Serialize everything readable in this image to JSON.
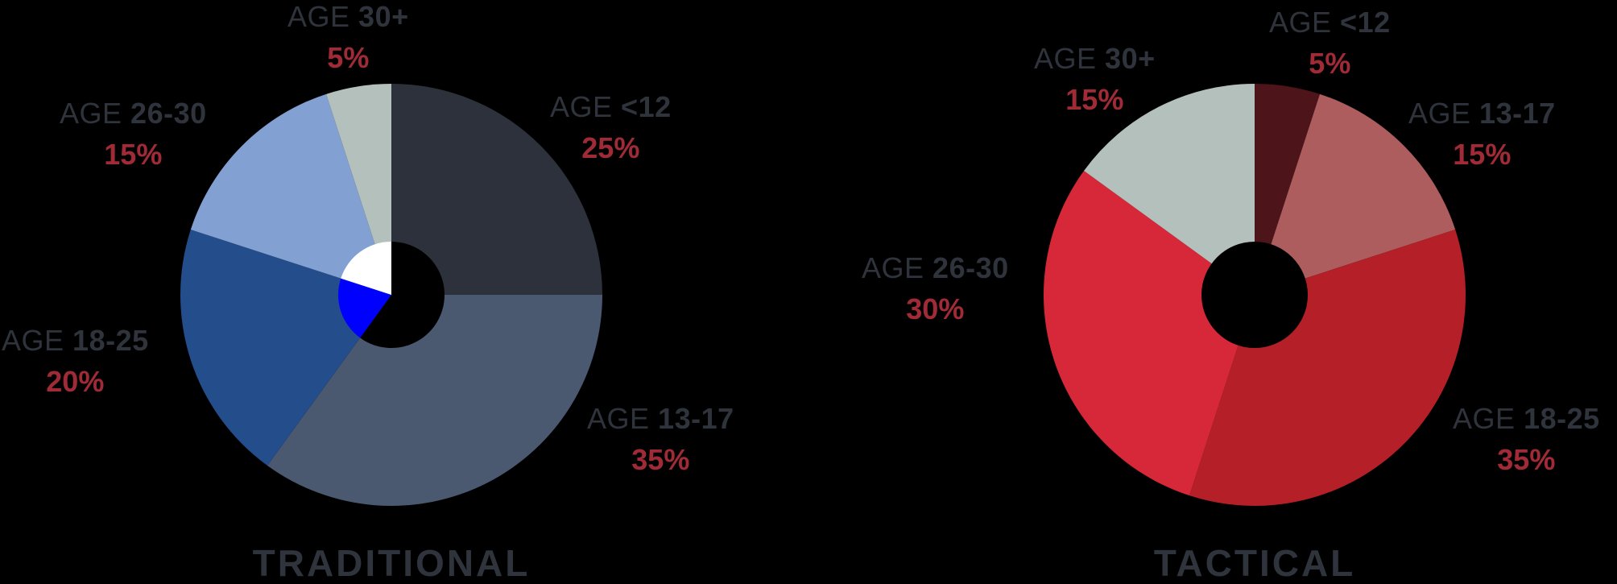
{
  "chart_data": [
    {
      "type": "pie",
      "title": "TRADITIONAL",
      "donut": true,
      "categories": [
        "AGE <12",
        "AGE 13-17",
        "AGE 18-25",
        "AGE 26-30",
        "AGE 30+"
      ],
      "values": [
        25,
        35,
        20,
        15,
        5
      ],
      "colors": [
        "#2c313b",
        "#4a5870",
        "#234d8b",
        "#82a0d2",
        "#b4c0bc"
      ],
      "start_angle": "12 o'clock",
      "direction": "clockwise",
      "inner_mini_pie": {
        "colors": [
          "#000000",
          "#0000ff",
          "#ffffff"
        ],
        "approx_values": [
          60,
          20,
          20
        ]
      }
    },
    {
      "type": "pie",
      "title": "TACTICAL",
      "donut": true,
      "categories": [
        "AGE <12",
        "AGE 13-17",
        "AGE 18-25",
        "AGE 26-30",
        "AGE 30+"
      ],
      "values": [
        5,
        15,
        35,
        30,
        15
      ],
      "colors": [
        "#4d1419",
        "#ad5d5e",
        "#b41f28",
        "#d62838",
        "#b4c0bc"
      ],
      "start_angle": "12 o'clock",
      "direction": "clockwise"
    }
  ],
  "traditional": {
    "title": "TRADITIONAL",
    "labels": [
      {
        "age": "AGE",
        "range": "<12",
        "pct": "25%"
      },
      {
        "age": "AGE",
        "range": "13-17",
        "pct": "35%"
      },
      {
        "age": "AGE",
        "range": "18-25",
        "pct": "20%"
      },
      {
        "age": "AGE",
        "range": "26-30",
        "pct": "15%"
      },
      {
        "age": "AGE",
        "range": "30+",
        "pct": "5%"
      }
    ]
  },
  "tactical": {
    "title": "TACTICAL",
    "labels": [
      {
        "age": "AGE",
        "range": "<12",
        "pct": "5%"
      },
      {
        "age": "AGE",
        "range": "13-17",
        "pct": "15%"
      },
      {
        "age": "AGE",
        "range": "18-25",
        "pct": "35%"
      },
      {
        "age": "AGE",
        "range": "26-30",
        "pct": "30%"
      },
      {
        "age": "AGE",
        "range": "30+",
        "pct": "15%"
      }
    ]
  },
  "colors": {
    "label_text": "#2e333c",
    "percent_text": "#a02b37",
    "background": "#000000"
  }
}
